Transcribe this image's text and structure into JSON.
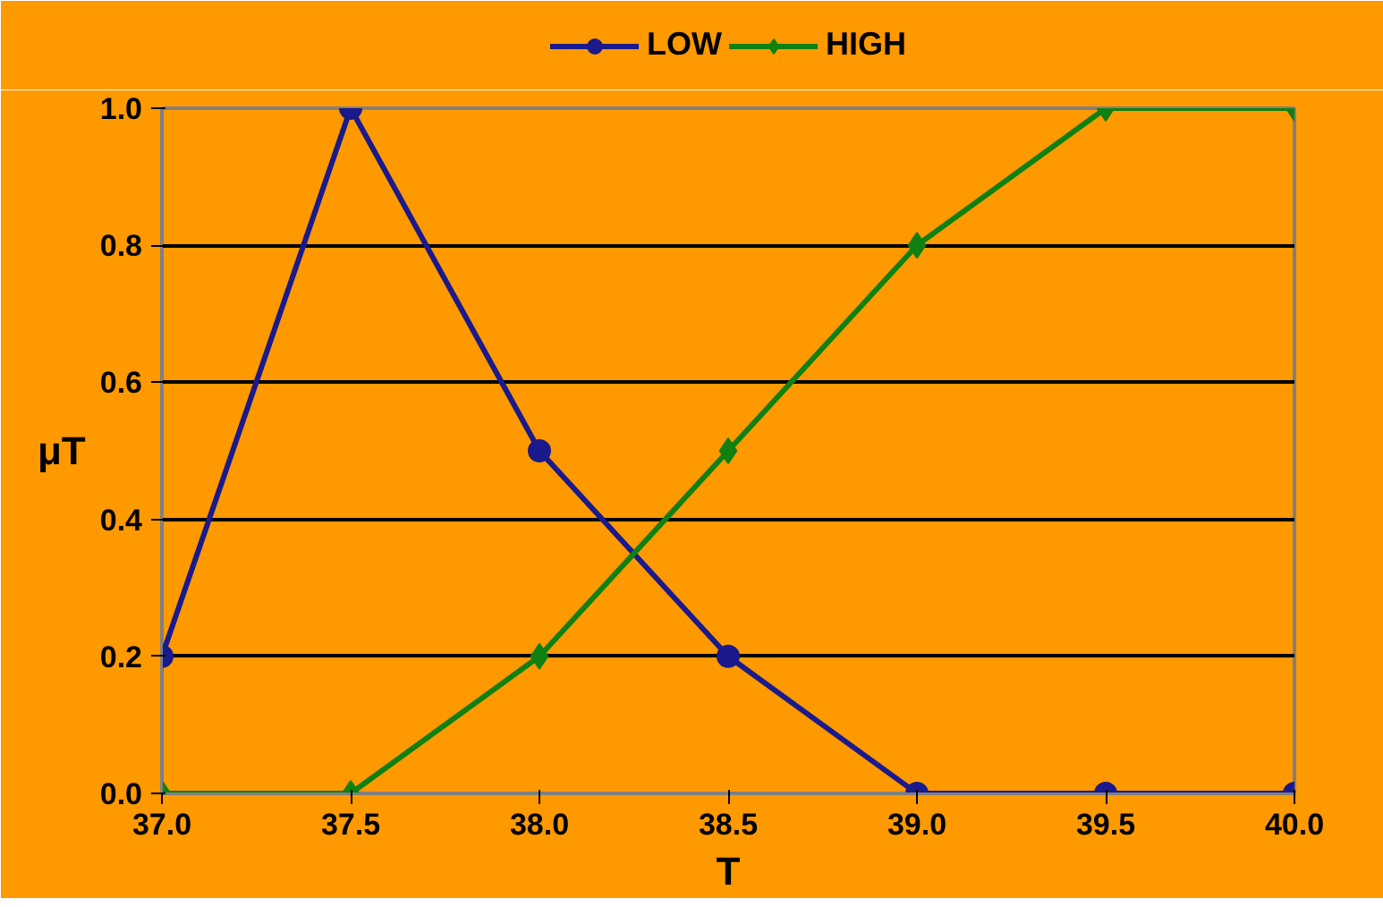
{
  "chart_data": {
    "type": "line",
    "xlabel": "T",
    "ylabel": "μT",
    "x": [
      37.0,
      37.5,
      38.0,
      38.5,
      39.0,
      39.5,
      40.0
    ],
    "series": [
      {
        "name": "LOW",
        "color": "#1a1a8c",
        "values": [
          0.2,
          1.0,
          0.5,
          0.2,
          0.0,
          0.0,
          0.0
        ],
        "marker": "circle"
      },
      {
        "name": "HIGH",
        "color": "#108010",
        "values": [
          0.0,
          0.0,
          0.2,
          0.5,
          0.8,
          1.0,
          1.0
        ],
        "marker": "diamond"
      }
    ],
    "xlim": [
      37.0,
      40.0
    ],
    "ylim": [
      0.0,
      1.0
    ],
    "xticks": [
      {
        "value": 37.0,
        "label": "37.0"
      },
      {
        "value": 37.5,
        "label": "37.5"
      },
      {
        "value": 38.0,
        "label": "38.0"
      },
      {
        "value": 38.5,
        "label": "38.5"
      },
      {
        "value": 39.0,
        "label": "39.0"
      },
      {
        "value": 39.5,
        "label": "39.5"
      },
      {
        "value": 40.0,
        "label": "40.0"
      }
    ],
    "yticks": [
      {
        "value": 0.0,
        "label": "0.0"
      },
      {
        "value": 0.2,
        "label": "0.2"
      },
      {
        "value": 0.4,
        "label": "0.4"
      },
      {
        "value": 0.6,
        "label": "0.6"
      },
      {
        "value": 0.8,
        "label": "0.8"
      },
      {
        "value": 1.0,
        "label": "1.0"
      }
    ],
    "grid": "y",
    "legend": "top",
    "line_style": "solid"
  }
}
